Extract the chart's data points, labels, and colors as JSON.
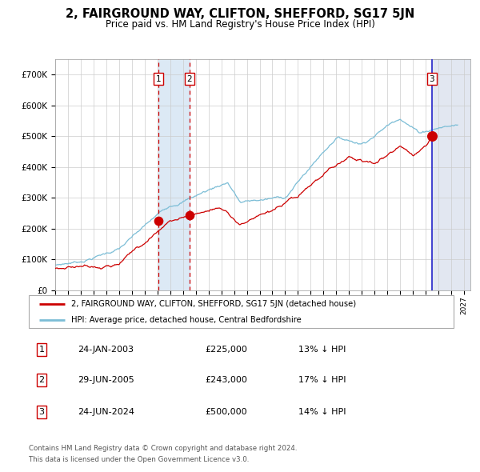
{
  "title": "2, FAIRGROUND WAY, CLIFTON, SHEFFORD, SG17 5JN",
  "subtitle": "Price paid vs. HM Land Registry's House Price Index (HPI)",
  "legend_line1": "2, FAIRGROUND WAY, CLIFTON, SHEFFORD, SG17 5JN (detached house)",
  "legend_line2": "HPI: Average price, detached house, Central Bedfordshire",
  "footer1": "Contains HM Land Registry data © Crown copyright and database right 2024.",
  "footer2": "This data is licensed under the Open Government Licence v3.0.",
  "transactions": [
    {
      "num": 1,
      "date": "24-JAN-2003",
      "price": 225000,
      "pct": "13%",
      "dir": "↓"
    },
    {
      "num": 2,
      "date": "29-JUN-2005",
      "price": 243000,
      "pct": "17%",
      "dir": "↓"
    },
    {
      "num": 3,
      "date": "24-JUN-2024",
      "price": 500000,
      "pct": "14%",
      "dir": "↓"
    }
  ],
  "sale_dates_year": [
    2003.07,
    2005.5,
    2024.48
  ],
  "sale_prices": [
    225000,
    243000,
    500000
  ],
  "hpi_color": "#7bbdd6",
  "price_color": "#cc0000",
  "highlight_color": "#dce9f5",
  "vline_color": "#3333cc",
  "shade_right_color": "#d0d8e8",
  "ylim": [
    0,
    750000
  ],
  "xlim_start": 1995.0,
  "xlim_end": 2027.5,
  "yticks": [
    0,
    100000,
    200000,
    300000,
    400000,
    500000,
    600000,
    700000
  ]
}
